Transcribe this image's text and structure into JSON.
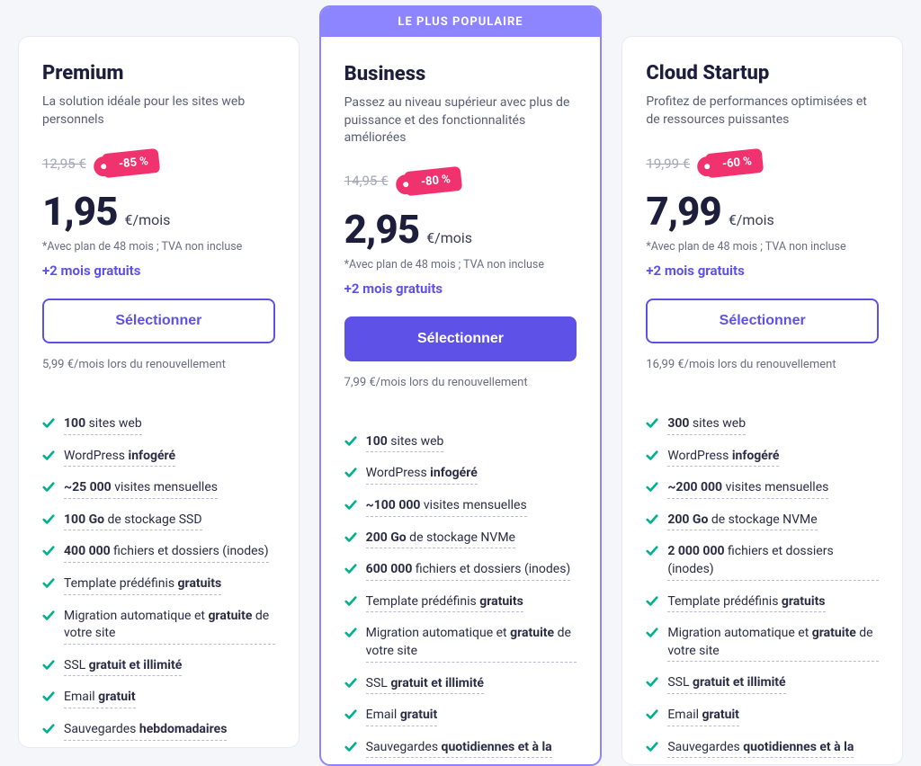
{
  "colors": {
    "background": "#f5f6fa",
    "card_bg": "#ffffff",
    "text_dark": "#1d1e3c",
    "text_muted": "#5a5b75",
    "accent": "#5d51e8",
    "accent_light": "#8c85ff",
    "discount": "#f0326e",
    "check": "#00b090",
    "border": "#e8e9f2"
  },
  "popular_label": "LE PLUS POPULAIRE",
  "price_unit": "€/mois",
  "price_note": "*Avec plan de 48 mois ; TVA non incluse",
  "bonus": "+2 mois gratuits",
  "select_label": "Sélectionner",
  "plans": [
    {
      "name": "Premium",
      "tagline": "La solution idéale pour les sites web personnels",
      "old_price": "12,95 €",
      "discount": "-85 %",
      "price": "1,95",
      "renewal": "5,99 €/mois lors du renouvellement",
      "featured": false,
      "features": [
        "<b>100</b> sites web",
        "WordPress <b>infogéré</b>",
        "<b>~25 000</b> visites mensuelles",
        "<b>100 Go</b> de stockage SSD",
        "<b>400 000</b> fichiers et dossiers (inodes)",
        "Template prédéfinis <b>gratuits</b>",
        "Migration automatique et <b>gratuite</b> de votre site",
        "SSL <b>gratuit et illimité</b>",
        "Email <b>gratuit</b>",
        "Sauvegardes <b>hebdomadaires</b>"
      ]
    },
    {
      "name": "Business",
      "tagline": "Passez au niveau supérieur avec plus de puissance et des fonctionnalités améliorées",
      "old_price": "14,95 €",
      "discount": "-80 %",
      "price": "2,95",
      "renewal": "7,99 €/mois lors du renouvellement",
      "featured": true,
      "features": [
        "<b>100</b> sites web",
        "WordPress <b>infogéré</b>",
        "<b>~100 000</b> visites mensuelles",
        "<b>200 Go</b> de stockage NVMe",
        "<b>600 000</b> fichiers et dossiers (inodes)",
        "Template prédéfinis <b>gratuits</b>",
        "Migration automatique et <b>gratuite</b> de votre site",
        "SSL <b>gratuit et illimité</b>",
        "Email <b>gratuit</b>",
        "Sauvegardes <b>quotidiennes et à la</b>"
      ]
    },
    {
      "name": "Cloud Startup",
      "tagline": "Profitez de performances optimisées et de ressources puissantes",
      "old_price": "19,99 €",
      "discount": "-60 %",
      "price": "7,99",
      "renewal": "16,99 €/mois lors du renouvellement",
      "featured": false,
      "features": [
        "<b>300</b> sites web",
        "WordPress <b>infogéré</b>",
        "<b>~200 000</b> visites mensuelles",
        "<b>200 Go</b> de stockage NVMe",
        "<b>2 000 000</b> fichiers et dossiers (inodes)",
        "Template prédéfinis <b>gratuits</b>",
        "Migration automatique et <b>gratuite</b> de votre site",
        "SSL <b>gratuit et illimité</b>",
        "Email <b>gratuit</b>",
        "Sauvegardes <b>quotidiennes et à la</b>"
      ]
    }
  ]
}
